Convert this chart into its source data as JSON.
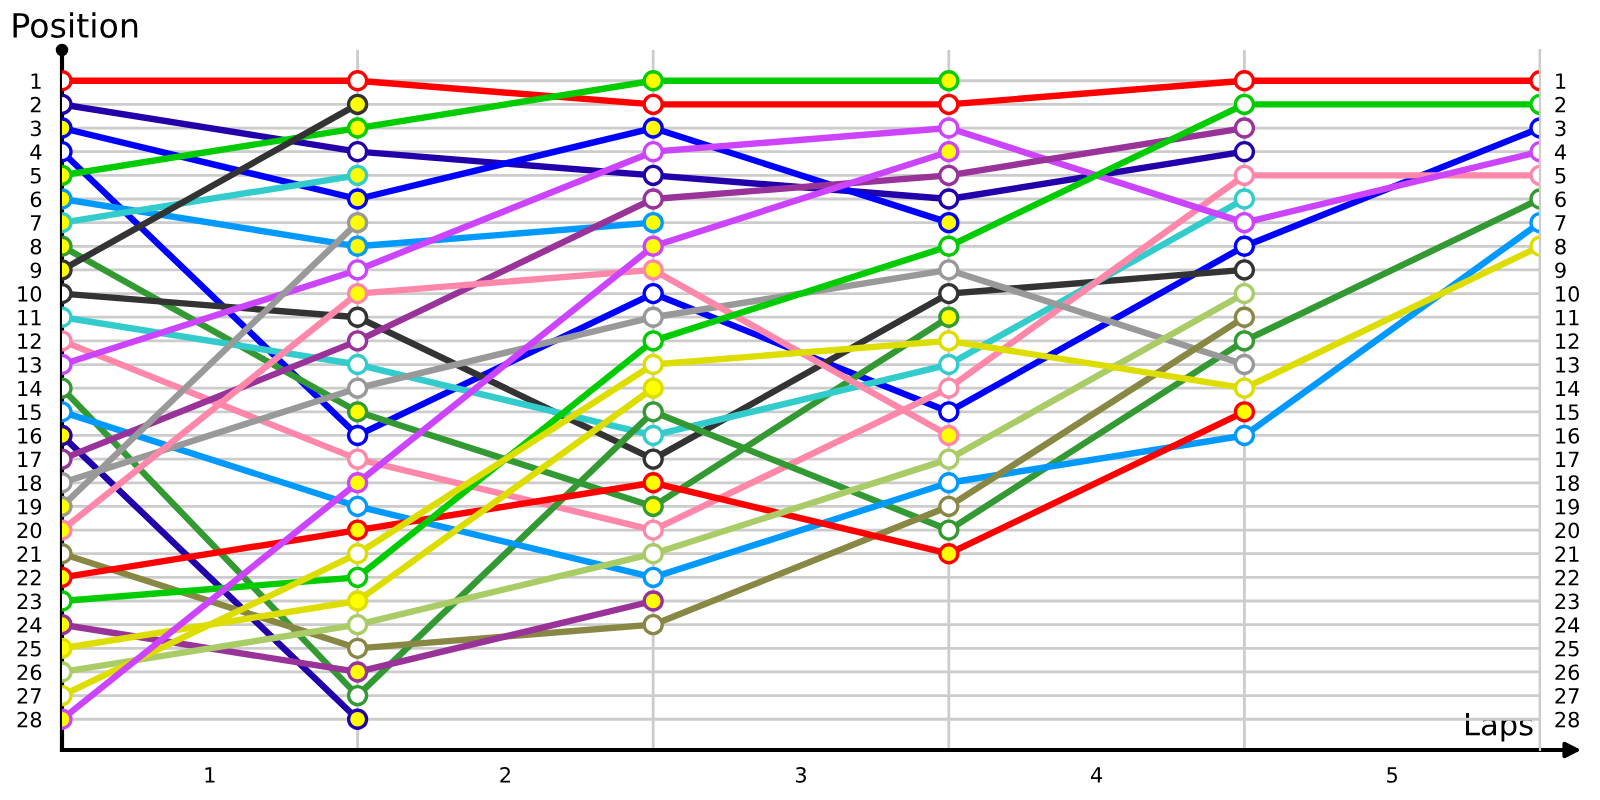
{
  "chart_data": {
    "type": "line",
    "xlabel": "Laps",
    "ylabel": "Position",
    "x": [
      0,
      1,
      2,
      3,
      4,
      5
    ],
    "xlim": [
      0,
      5
    ],
    "xticks": [
      {
        "value": 0,
        "label": null
      },
      {
        "value": 0.5,
        "label": "1"
      },
      {
        "value": 1,
        "label": null
      },
      {
        "value": 1.5,
        "label": "2"
      },
      {
        "value": 2,
        "label": null
      },
      {
        "value": 2.5,
        "label": "3"
      },
      {
        "value": 3,
        "label": null
      },
      {
        "value": 3.5,
        "label": "4"
      },
      {
        "value": 4,
        "label": null
      },
      {
        "value": 4.5,
        "label": "5"
      },
      {
        "value": 5,
        "label": null
      }
    ],
    "ylim": [
      29.3,
      -0.3
    ],
    "yticks": [
      1,
      2,
      3,
      4,
      5,
      6,
      7,
      8,
      9,
      10,
      11,
      12,
      13,
      14,
      15,
      16,
      17,
      18,
      19,
      20,
      21,
      22,
      23,
      24,
      25,
      26,
      27,
      28
    ],
    "y2lim": [
      29.3,
      -0.3
    ],
    "y2ticks": [
      1,
      2,
      3,
      4,
      5,
      6,
      7,
      8,
      9,
      10,
      11,
      12,
      13,
      14,
      15,
      16,
      17,
      18,
      19,
      20,
      21,
      22,
      23,
      24,
      25,
      26,
      27,
      28
    ],
    "grid": true,
    "marker": "circle",
    "line_style": "solid",
    "series": [
      {
        "color": "#ff0000",
        "values": [
          1,
          1,
          2,
          2,
          1,
          1
        ]
      },
      {
        "color": "#2200aa",
        "values": [
          2,
          4,
          5,
          6,
          4,
          null
        ]
      },
      {
        "color": "#0000ff",
        "values": [
          3,
          6,
          3,
          7,
          null,
          null
        ],
        "colors": [
          "#ffff00",
          "#ffff00",
          "#ffff00",
          "#ffff00",
          null,
          null
        ]
      },
      {
        "color": "#0000ff",
        "values": [
          4,
          16,
          10,
          15,
          8,
          3
        ]
      },
      {
        "color": "#00cc00",
        "values": [
          5,
          3,
          1,
          1,
          null,
          null
        ],
        "colors": [
          "#ffff00",
          "#ffff00",
          "#ffff00",
          "#ffff00",
          null,
          null
        ]
      },
      {
        "color": "#0099ff",
        "values": [
          6,
          8,
          7,
          null,
          null,
          null
        ],
        "colors": [
          "#ffff00",
          "#ffff00",
          "#ffff00",
          null,
          null,
          null
        ]
      },
      {
        "color": "#33cccc",
        "values": [
          7,
          5,
          null,
          null,
          null,
          null
        ],
        "colors": [
          "#ffff00",
          "#ffff00",
          null,
          null,
          null,
          null
        ]
      },
      {
        "color": "#339933",
        "values": [
          8,
          15,
          19,
          11,
          null,
          null
        ],
        "colors": [
          "#ffff00",
          "#ffff00",
          "#ffff00",
          "#ffff00",
          null,
          null
        ]
      },
      {
        "color": "#333333",
        "values": [
          9,
          2,
          null,
          null,
          null,
          null
        ],
        "colors": [
          "#ffff00",
          "#ffff00",
          null,
          null,
          null,
          null
        ]
      },
      {
        "color": "#333333",
        "values": [
          10,
          11,
          17,
          10,
          9,
          null
        ]
      },
      {
        "color": "#33cccc",
        "values": [
          11,
          13,
          16,
          13,
          6,
          null
        ]
      },
      {
        "color": "#ff88aa",
        "values": [
          12,
          17,
          20,
          14,
          5,
          5
        ]
      },
      {
        "color": "#cc44ff",
        "values": [
          13,
          9,
          4,
          3,
          7,
          4
        ]
      },
      {
        "color": "#339933",
        "values": [
          14,
          27,
          15,
          20,
          12,
          6
        ]
      },
      {
        "color": "#0099ff",
        "values": [
          15,
          19,
          22,
          18,
          16,
          7
        ]
      },
      {
        "color": "#2200aa",
        "values": [
          16,
          28,
          null,
          null,
          null,
          null
        ],
        "colors": [
          "#ffff00",
          "#ffff00",
          null,
          null,
          null,
          null
        ]
      },
      {
        "color": "#993399",
        "values": [
          17,
          12,
          6,
          5,
          3,
          null
        ]
      },
      {
        "color": "#999999",
        "values": [
          18,
          14,
          11,
          9,
          13,
          null
        ]
      },
      {
        "color": "#999999",
        "values": [
          19,
          7,
          null,
          null,
          null,
          null
        ],
        "colors": [
          "#ffff00",
          "#ffff00",
          null,
          null,
          null,
          null
        ]
      },
      {
        "color": "#ff88aa",
        "values": [
          20,
          10,
          9,
          16,
          null,
          null
        ],
        "colors": [
          "#ffff00",
          "#ffff00",
          "#ffff00",
          "#ffff00",
          null,
          null
        ]
      },
      {
        "color": "#888844",
        "values": [
          21,
          25,
          24,
          19,
          11,
          null
        ]
      },
      {
        "color": "#ff0000",
        "values": [
          22,
          20,
          18,
          21,
          15,
          null
        ],
        "colors": [
          "#ffff00",
          "#ffff00",
          "#ffff00",
          "#ffff00",
          "#ffff00",
          null
        ]
      },
      {
        "color": "#00cc00",
        "values": [
          23,
          22,
          12,
          8,
          2,
          2
        ]
      },
      {
        "color": "#993399",
        "values": [
          24,
          26,
          23,
          null,
          null,
          null
        ],
        "colors": [
          "#ffff00",
          "#ffff00",
          "#ffff00",
          null,
          null,
          null
        ]
      },
      {
        "color": "#dddd00",
        "values": [
          25,
          23,
          14,
          null,
          null,
          null
        ],
        "colors": [
          "#ffff00",
          "#ffff00",
          "#ffff00",
          null,
          null,
          null
        ]
      },
      {
        "color": "#aacc66",
        "values": [
          26,
          24,
          21,
          17,
          10,
          null
        ]
      },
      {
        "color": "#dddd00",
        "values": [
          27,
          21,
          13,
          12,
          14,
          8
        ]
      },
      {
        "color": "#cc44ff",
        "values": [
          28,
          18,
          8,
          4,
          null,
          null
        ],
        "colors": [
          "#ffff00",
          "#ffff00",
          "#ffff00",
          "#ffff00",
          null,
          null
        ]
      }
    ]
  }
}
